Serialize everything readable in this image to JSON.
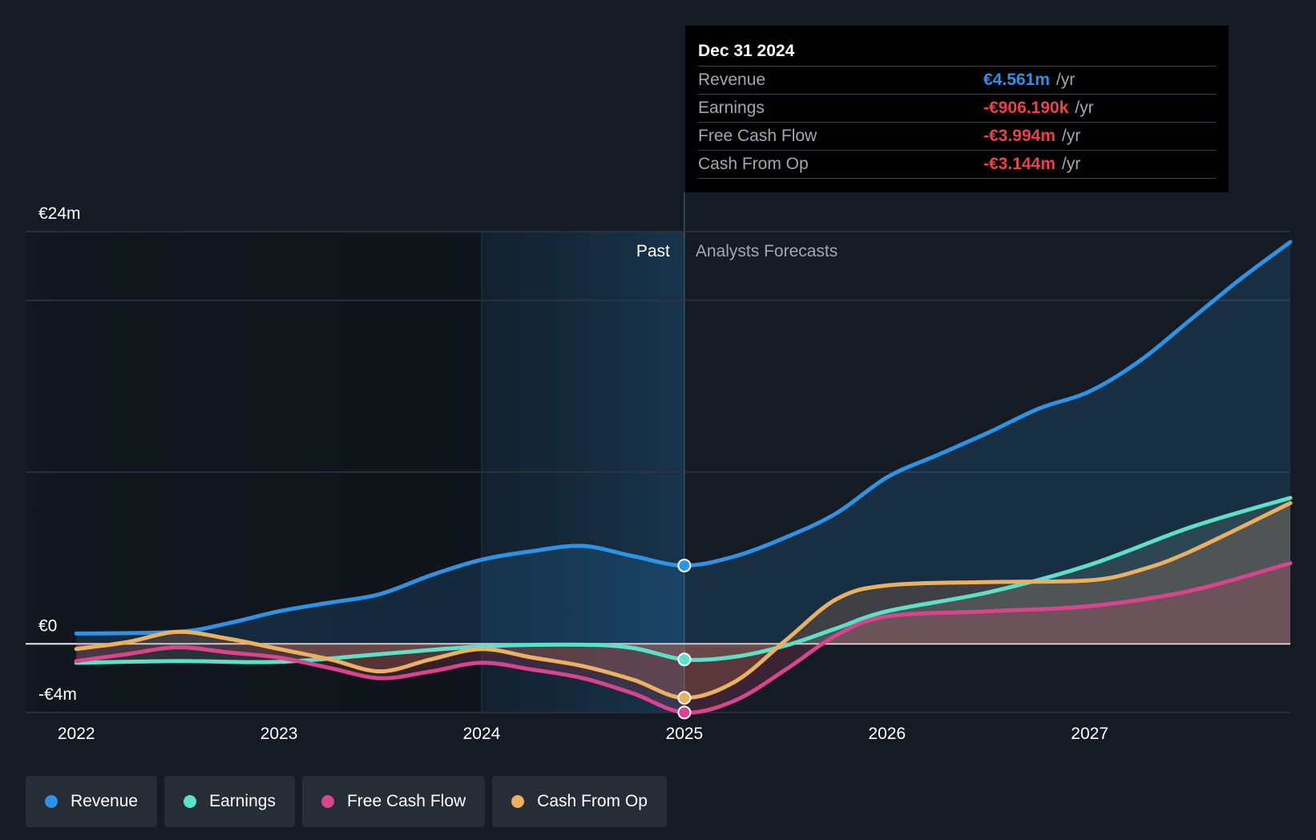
{
  "chart_data": {
    "type": "line",
    "title": "",
    "xlabel": "",
    "ylabel": "",
    "ylim": [
      -4,
      24
    ],
    "xlim": [
      2021.75,
      2027.99
    ],
    "y_ticks": [
      {
        "value": 24,
        "label": "€24m"
      },
      {
        "value": 0,
        "label": "€0"
      },
      {
        "value": -4,
        "label": "-€4m"
      }
    ],
    "x_ticks": [
      {
        "value": 2022,
        "label": "2022"
      },
      {
        "value": 2023,
        "label": "2023"
      },
      {
        "value": 2024,
        "label": "2024"
      },
      {
        "value": 2025,
        "label": "2025"
      },
      {
        "value": 2026,
        "label": "2026"
      },
      {
        "value": 2027,
        "label": "2027"
      }
    ],
    "gridlines": [
      24,
      20,
      10,
      0,
      -4
    ],
    "past_label": "Past",
    "forecast_label": "Analysts Forecasts",
    "highlight_start": 2024,
    "divider": 2025,
    "series": [
      {
        "name": "Revenue",
        "color": "#2e93e6",
        "points": [
          [
            2022,
            0.6
          ],
          [
            2022.5,
            0.7
          ],
          [
            2022.75,
            1.2
          ],
          [
            2023,
            1.9
          ],
          [
            2023.25,
            2.4
          ],
          [
            2023.5,
            2.9
          ],
          [
            2023.75,
            4.0
          ],
          [
            2024,
            4.9
          ],
          [
            2024.25,
            5.4
          ],
          [
            2024.5,
            5.7
          ],
          [
            2024.75,
            5.1
          ],
          [
            2025,
            4.56
          ],
          [
            2025.25,
            5.1
          ],
          [
            2025.5,
            6.2
          ],
          [
            2025.75,
            7.6
          ],
          [
            2026,
            9.7
          ],
          [
            2026.25,
            11.0
          ],
          [
            2026.5,
            12.3
          ],
          [
            2026.75,
            13.7
          ],
          [
            2027,
            14.7
          ],
          [
            2027.25,
            16.5
          ],
          [
            2027.5,
            18.9
          ],
          [
            2027.75,
            21.3
          ],
          [
            2027.99,
            23.4
          ]
        ]
      },
      {
        "name": "Earnings",
        "color": "#5ce0c8",
        "points": [
          [
            2022,
            -1.1
          ],
          [
            2022.5,
            -1.0
          ],
          [
            2023,
            -1.05
          ],
          [
            2023.5,
            -0.6
          ],
          [
            2024,
            -0.15
          ],
          [
            2024.5,
            -0.05
          ],
          [
            2024.75,
            -0.25
          ],
          [
            2025,
            -0.906
          ],
          [
            2025.25,
            -0.75
          ],
          [
            2025.5,
            -0.1
          ],
          [
            2025.75,
            0.9
          ],
          [
            2026,
            1.9
          ],
          [
            2026.5,
            3.0
          ],
          [
            2027,
            4.6
          ],
          [
            2027.5,
            6.8
          ],
          [
            2027.99,
            8.5
          ]
        ]
      },
      {
        "name": "Free Cash Flow",
        "color": "#d6458d",
        "points": [
          [
            2022,
            -1.0
          ],
          [
            2022.25,
            -0.6
          ],
          [
            2022.5,
            -0.2
          ],
          [
            2022.75,
            -0.5
          ],
          [
            2023,
            -0.8
          ],
          [
            2023.25,
            -1.4
          ],
          [
            2023.5,
            -2.0
          ],
          [
            2023.75,
            -1.6
          ],
          [
            2024,
            -1.1
          ],
          [
            2024.25,
            -1.5
          ],
          [
            2024.5,
            -2.0
          ],
          [
            2024.75,
            -2.9
          ],
          [
            2025,
            -3.994
          ],
          [
            2025.25,
            -3.3
          ],
          [
            2025.5,
            -1.5
          ],
          [
            2025.75,
            0.5
          ],
          [
            2026,
            1.6
          ],
          [
            2026.5,
            1.9
          ],
          [
            2027,
            2.2
          ],
          [
            2027.5,
            3.1
          ],
          [
            2027.99,
            4.7
          ]
        ]
      },
      {
        "name": "Cash From Op",
        "color": "#ebb060",
        "points": [
          [
            2022,
            -0.3
          ],
          [
            2022.25,
            0.1
          ],
          [
            2022.5,
            0.7
          ],
          [
            2022.75,
            0.3
          ],
          [
            2023,
            -0.3
          ],
          [
            2023.25,
            -0.9
          ],
          [
            2023.5,
            -1.6
          ],
          [
            2023.75,
            -0.9
          ],
          [
            2024,
            -0.3
          ],
          [
            2024.25,
            -0.8
          ],
          [
            2024.5,
            -1.3
          ],
          [
            2024.75,
            -2.1
          ],
          [
            2025,
            -3.144
          ],
          [
            2025.25,
            -2.2
          ],
          [
            2025.5,
            0.2
          ],
          [
            2025.75,
            2.6
          ],
          [
            2026,
            3.4
          ],
          [
            2026.5,
            3.6
          ],
          [
            2027,
            3.7
          ],
          [
            2027.25,
            4.3
          ],
          [
            2027.5,
            5.4
          ],
          [
            2027.99,
            8.2
          ]
        ]
      }
    ]
  },
  "tooltip": {
    "date": "Dec 31 2024",
    "rows": [
      {
        "label": "Revenue",
        "value": "€4.561m",
        "unit": "/yr",
        "color": "#2e93e6"
      },
      {
        "label": "Earnings",
        "value": "-€906.190k",
        "unit": "/yr",
        "color": "#e8434b"
      },
      {
        "label": "Free Cash Flow",
        "value": "-€3.994m",
        "unit": "/yr",
        "color": "#e8434b"
      },
      {
        "label": "Cash From Op",
        "value": "-€3.144m",
        "unit": "/yr",
        "color": "#e8434b"
      }
    ]
  },
  "legend": [
    {
      "label": "Revenue",
      "color": "#2e93e6"
    },
    {
      "label": "Earnings",
      "color": "#5ce0c8"
    },
    {
      "label": "Free Cash Flow",
      "color": "#d6458d"
    },
    {
      "label": "Cash From Op",
      "color": "#ebb060"
    }
  ]
}
